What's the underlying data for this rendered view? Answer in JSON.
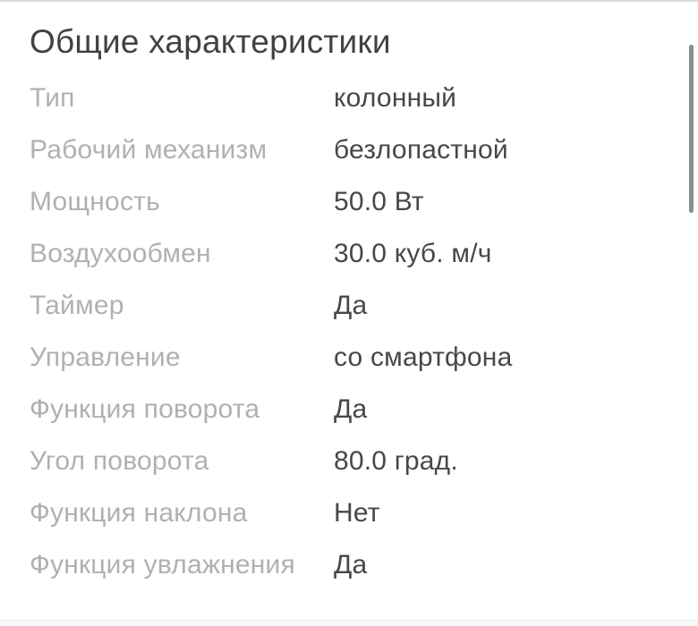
{
  "section": {
    "title": "Общие характеристики",
    "specs": [
      {
        "label": "Тип",
        "value": "колонный"
      },
      {
        "label": "Рабочий механизм",
        "value": "безлопастной"
      },
      {
        "label": "Мощность",
        "value": "50.0 Вт"
      },
      {
        "label": "Воздухообмен",
        "value": "30.0 куб. м/ч"
      },
      {
        "label": "Таймер",
        "value": "Да"
      },
      {
        "label": "Управление",
        "value": "со смартфона"
      },
      {
        "label": "Функция поворота",
        "value": "Да"
      },
      {
        "label": "Угол поворота",
        "value": "80.0 град."
      },
      {
        "label": "Функция наклона",
        "value": "Нет"
      },
      {
        "label": "Функция увлажнения",
        "value": "Да"
      }
    ]
  },
  "scrollbar": {
    "visible": true
  },
  "colors": {
    "title_text": "#3f4346",
    "label_text": "#aeb1b4",
    "value_text": "#45484b",
    "top_divider": "#d9dcde",
    "scrollbar_thumb": "#8a8d8f",
    "bottom_strip_bg": "#f7f8f9",
    "bottom_strip_border": "#e7e9eb"
  }
}
